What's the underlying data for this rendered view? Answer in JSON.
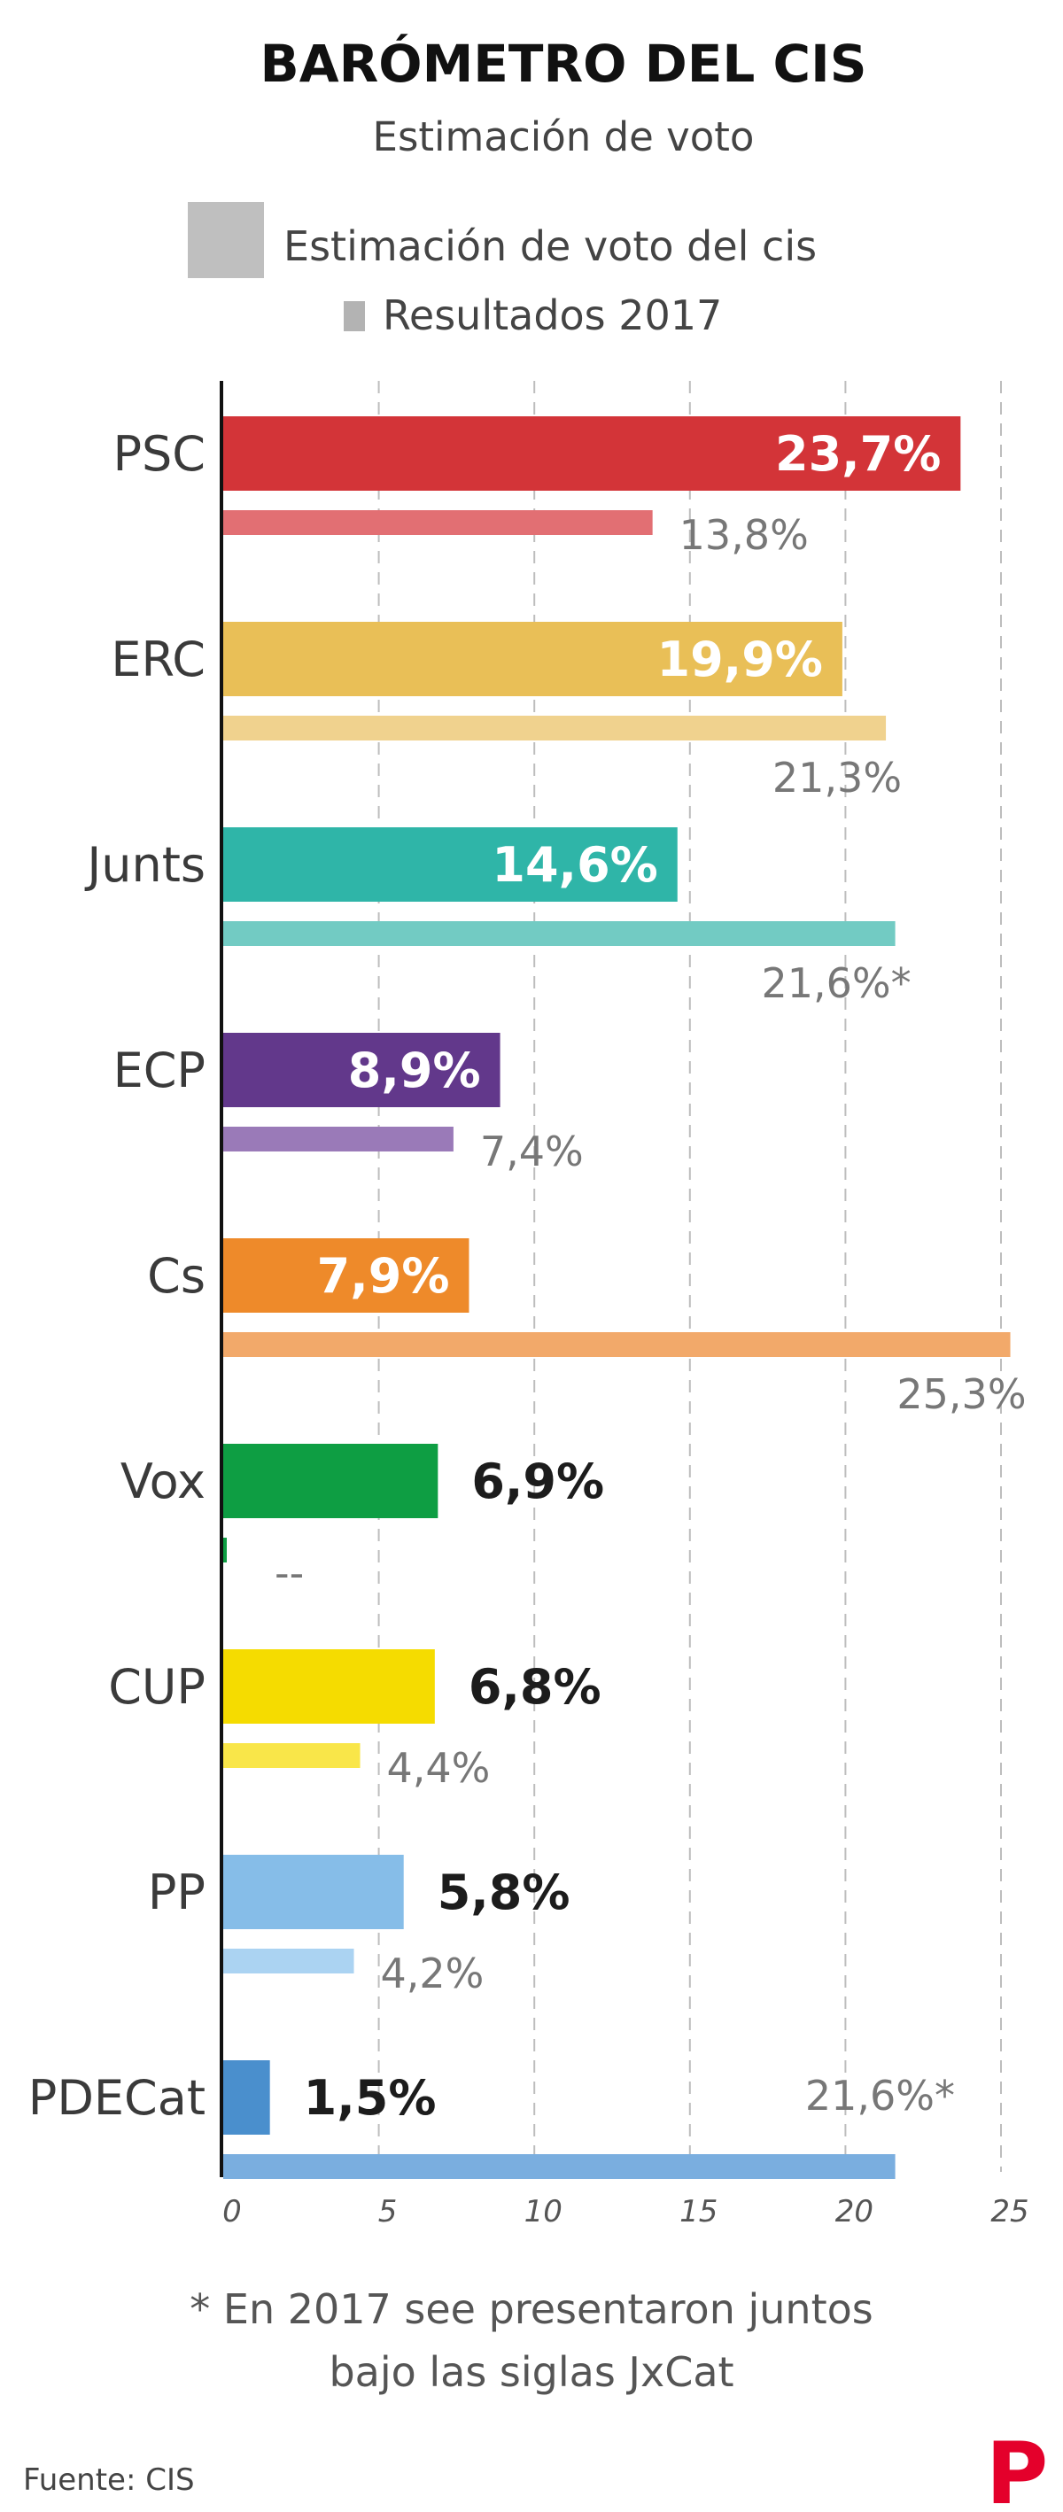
{
  "chart_data": {
    "type": "bar",
    "orientation": "horizontal",
    "title": "BARÓMETRO DEL CIS",
    "subtitle": "Estimación de voto",
    "categories": [
      "PSC",
      "ERC",
      "Junts",
      "ECP",
      "Cs",
      "Vox",
      "CUP",
      "PP",
      "PDECat"
    ],
    "series": [
      {
        "name": "Estimación de voto del cis",
        "values": [
          23.7,
          19.9,
          14.6,
          8.9,
          7.9,
          6.9,
          6.8,
          5.8,
          1.5
        ],
        "labels": [
          "23,7%",
          "19,9%",
          "14,6%",
          "8,9%",
          "7,9%",
          "6,9%",
          "6,8%",
          "5,8%",
          "1,5%"
        ],
        "colors": [
          "#d33438",
          "#e9bf57",
          "#2fb5a8",
          "#62388b",
          "#ee8a2a",
          "#0e9e43",
          "#f5dc00",
          "#86bde8",
          "#4a8fcd"
        ]
      },
      {
        "name": "Resultados 2017",
        "values": [
          13.8,
          21.3,
          21.6,
          7.4,
          25.3,
          0,
          4.4,
          4.2,
          21.6
        ],
        "labels": [
          "13,8%",
          "21,3%",
          "21,6%*",
          "7,4%",
          "25,3%",
          "--",
          "4,4%",
          "4,2%",
          "21,6%*"
        ],
        "colors": [
          "#e26f73",
          "#f0d28e",
          "#72cbc3",
          "#9a7ab8",
          "#f2a96a",
          "#0e9e43",
          "#f9e649",
          "#abd3f2",
          "#7aaedf"
        ]
      }
    ],
    "xlim": [
      0,
      25
    ],
    "ticks": [
      "0",
      "5",
      "10",
      "15",
      "20",
      "25"
    ],
    "grid": true,
    "legend_position": "top",
    "legend_colors": [
      "#bfbfbf",
      "#b3b3b3"
    ]
  },
  "footnote_lines": [
    "* En 2017 see presentaron juntos",
    "bajo las siglas JxCat"
  ],
  "source": "Fuente: CIS",
  "logo_letter": "P"
}
